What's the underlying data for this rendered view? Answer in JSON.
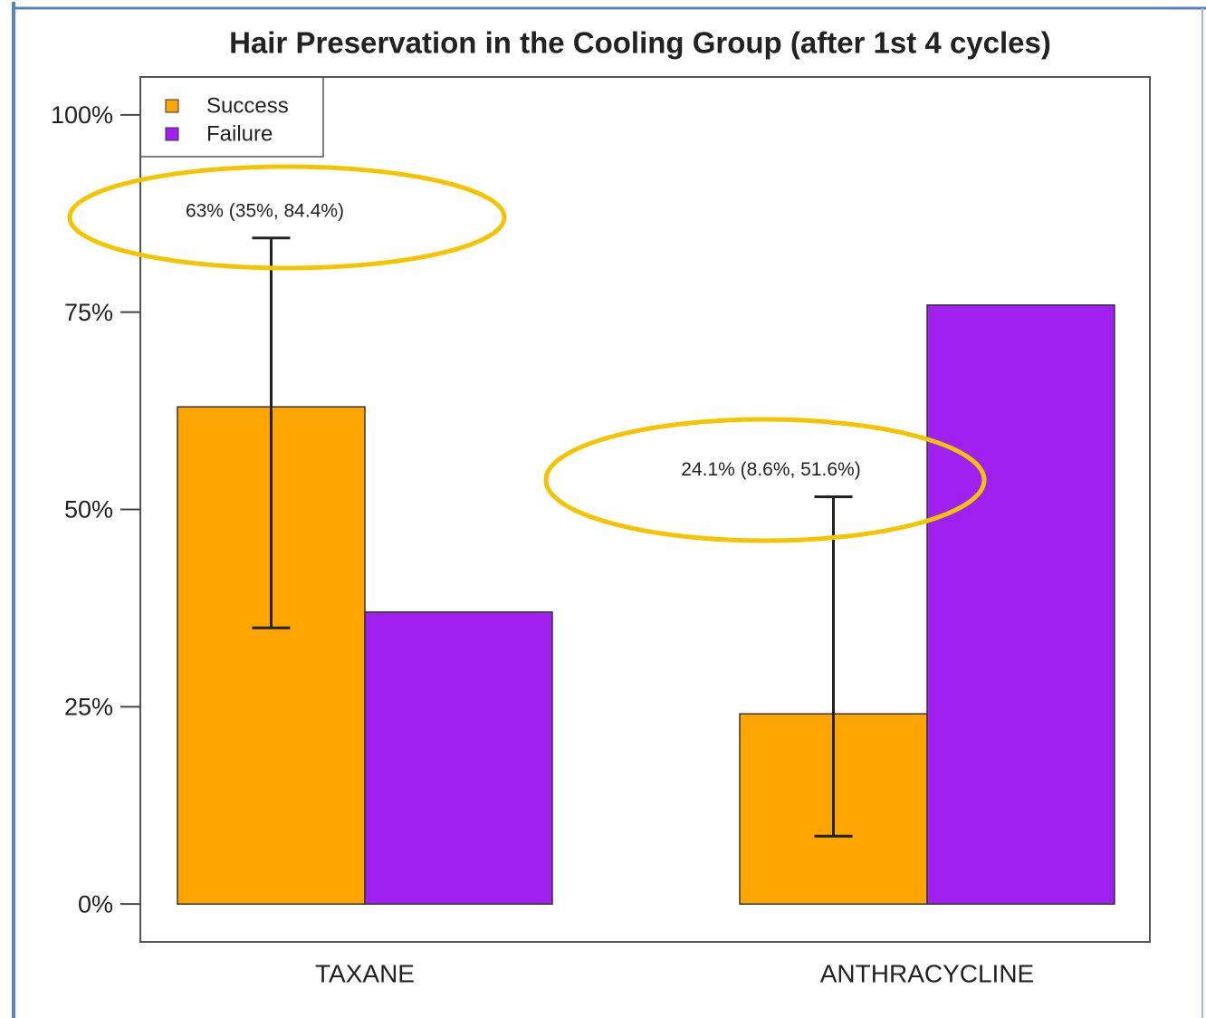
{
  "chart_data": {
    "type": "bar",
    "title": "Hair Preservation in the Cooling Group (after 1st 4 cycles)",
    "categories": [
      "TAXANE",
      "ANTHRACYCLINE"
    ],
    "series": [
      {
        "name": "Success",
        "color": "#FFA500",
        "values": [
          63,
          24.1
        ],
        "ci_low": [
          35,
          8.6
        ],
        "ci_high": [
          84.4,
          51.6
        ],
        "value_labels": [
          "63% (35%, 84.4%)",
          "24.1% (8.6%, 51.6%)"
        ]
      },
      {
        "name": "Failure",
        "color": "#A020F0",
        "values": [
          37,
          75.9
        ]
      }
    ],
    "ylim": [
      -4.8,
      104.8
    ],
    "yticks": [
      {
        "value": 0,
        "label": "0%"
      },
      {
        "value": 25,
        "label": "25%"
      },
      {
        "value": 50,
        "label": "50%"
      },
      {
        "value": 75,
        "label": "75%"
      },
      {
        "value": 100,
        "label": "100%"
      }
    ],
    "legend": "top-left"
  }
}
